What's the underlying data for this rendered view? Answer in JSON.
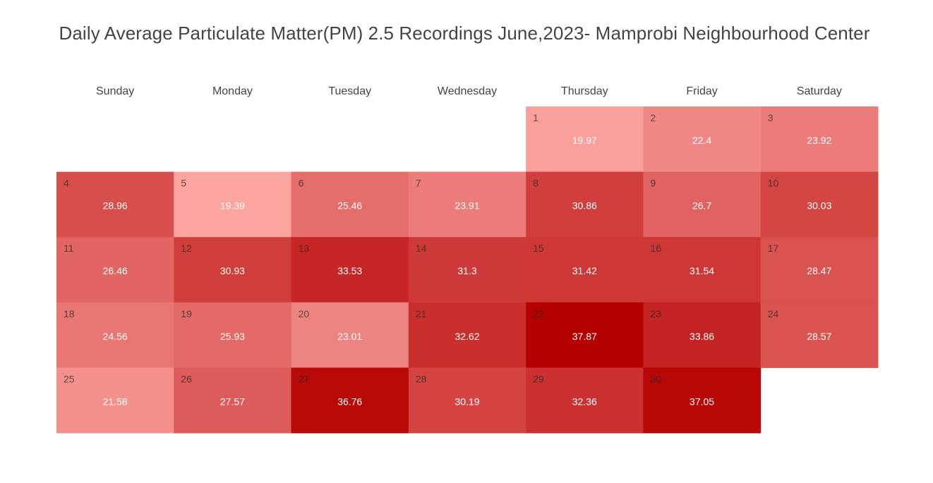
{
  "chart_data": {
    "type": "heatmap",
    "title": "Daily Average Particulate Matter(PM) 2.5 Recordings June,2023- Mamprobi Neighbourhood Center",
    "weekdays": [
      "Sunday",
      "Monday",
      "Tuesday",
      "Wednesday",
      "Thursday",
      "Friday",
      "Saturday"
    ],
    "first_weekday_index": 4,
    "days": [
      1,
      2,
      3,
      4,
      5,
      6,
      7,
      8,
      9,
      10,
      11,
      12,
      13,
      14,
      15,
      16,
      17,
      18,
      19,
      20,
      21,
      22,
      23,
      24,
      25,
      26,
      27,
      28,
      29,
      30
    ],
    "values": [
      19.97,
      22.4,
      23.92,
      28.96,
      19.39,
      25.46,
      23.91,
      30.86,
      26.7,
      30.03,
      26.46,
      30.93,
      33.53,
      31.3,
      31.42,
      31.54,
      28.47,
      24.56,
      25.93,
      23.01,
      32.62,
      37.87,
      33.86,
      28.57,
      21.58,
      27.57,
      36.76,
      30.19,
      32.36,
      37.05
    ],
    "colorscale": {
      "low": "#fca4a0",
      "high": "#b50000"
    }
  }
}
